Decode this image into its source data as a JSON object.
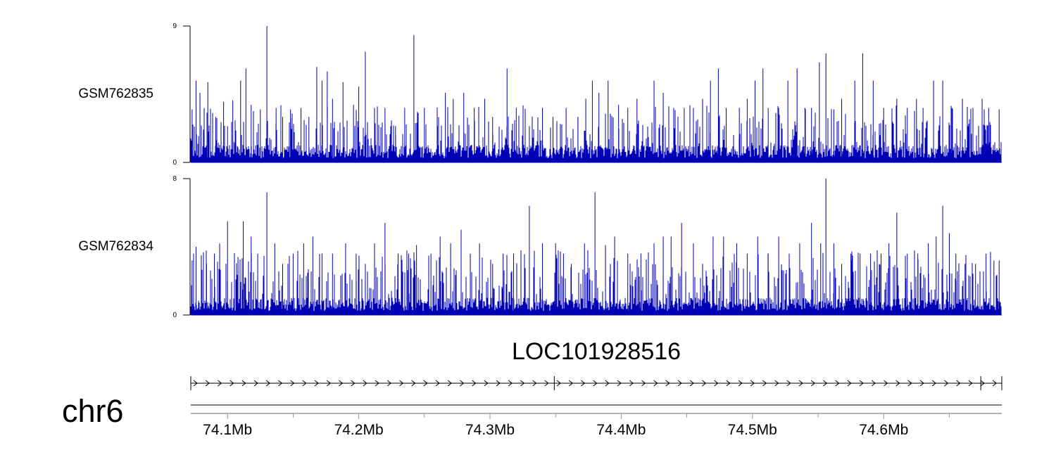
{
  "chart_data": {
    "type": "bar",
    "chromosome": "chr6",
    "x_unit": "Mb",
    "xlim": [
      74.072,
      74.69
    ],
    "x_ticks": [
      74.1,
      74.2,
      74.3,
      74.4,
      74.5,
      74.6
    ],
    "x_tick_labels": [
      "74.1Mb",
      "74.2Mb",
      "74.3Mb",
      "74.4Mb",
      "74.5Mb",
      "74.6Mb"
    ],
    "bar_color": "#0000b4",
    "tracks": [
      {
        "name": "GSM762835",
        "ylim": [
          0,
          9
        ],
        "y_tick_labels": [
          "9",
          "0"
        ],
        "baseline": 0.8,
        "density": 0.45,
        "peaks": [
          [
            74.073,
            3.5
          ],
          [
            74.076,
            5.4
          ],
          [
            74.079,
            4.6
          ],
          [
            74.085,
            5.3
          ],
          [
            74.091,
            3.0
          ],
          [
            74.097,
            4.0
          ],
          [
            74.1,
            2.4
          ],
          [
            74.104,
            4.1
          ],
          [
            74.11,
            5.4
          ],
          [
            74.114,
            6.2
          ],
          [
            74.118,
            3.8
          ],
          [
            74.125,
            3.5
          ],
          [
            74.13,
            9.0
          ],
          [
            74.137,
            3.6
          ],
          [
            74.142,
            3.0
          ],
          [
            74.148,
            3.5
          ],
          [
            74.156,
            3.6
          ],
          [
            74.162,
            3.0
          ],
          [
            74.168,
            6.3
          ],
          [
            74.172,
            5.4
          ],
          [
            74.176,
            6.0
          ],
          [
            74.18,
            4.2
          ],
          [
            74.188,
            5.3
          ],
          [
            74.196,
            3.8
          ],
          [
            74.2,
            5.0
          ],
          [
            74.205,
            7.3
          ],
          [
            74.212,
            3.6
          ],
          [
            74.22,
            3.6
          ],
          [
            74.228,
            2.4
          ],
          [
            74.235,
            3.6
          ],
          [
            74.242,
            8.4
          ],
          [
            74.25,
            3.6
          ],
          [
            74.26,
            2.4
          ],
          [
            74.266,
            4.6
          ],
          [
            74.272,
            4.2
          ],
          [
            74.28,
            4.6
          ],
          [
            74.288,
            3.6
          ],
          [
            74.296,
            4.2
          ],
          [
            74.302,
            3.0
          ],
          [
            74.313,
            6.2
          ],
          [
            74.32,
            3.6
          ],
          [
            74.33,
            2.4
          ],
          [
            74.34,
            3.6
          ],
          [
            74.348,
            3.0
          ],
          [
            74.358,
            3.6
          ],
          [
            74.367,
            3.0
          ],
          [
            74.373,
            4.2
          ],
          [
            74.378,
            5.4
          ],
          [
            74.383,
            4.6
          ],
          [
            74.39,
            5.4
          ],
          [
            74.398,
            3.8
          ],
          [
            74.405,
            3.6
          ],
          [
            74.412,
            4.2
          ],
          [
            74.425,
            5.4
          ],
          [
            74.432,
            4.6
          ],
          [
            74.44,
            3.6
          ],
          [
            74.448,
            3.6
          ],
          [
            74.455,
            3.6
          ],
          [
            74.462,
            4.2
          ],
          [
            74.468,
            5.4
          ],
          [
            74.474,
            6.2
          ],
          [
            74.48,
            3.6
          ],
          [
            74.49,
            3.6
          ],
          [
            74.496,
            4.2
          ],
          [
            74.502,
            5.4
          ],
          [
            74.508,
            6.2
          ],
          [
            74.512,
            3.6
          ],
          [
            74.52,
            3.6
          ],
          [
            74.527,
            5.4
          ],
          [
            74.534,
            6.2
          ],
          [
            74.54,
            3.6
          ],
          [
            74.545,
            3.6
          ],
          [
            74.551,
            6.6
          ],
          [
            74.556,
            7.2
          ],
          [
            74.562,
            3.5
          ],
          [
            74.568,
            4.2
          ],
          [
            74.578,
            5.4
          ],
          [
            74.584,
            7.2
          ],
          [
            74.592,
            5.4
          ],
          [
            74.6,
            3.6
          ],
          [
            74.61,
            4.2
          ],
          [
            74.618,
            3.6
          ],
          [
            74.625,
            4.2
          ],
          [
            74.63,
            3.6
          ],
          [
            74.638,
            5.4
          ],
          [
            74.645,
            5.4
          ],
          [
            74.652,
            3.6
          ],
          [
            74.66,
            4.2
          ],
          [
            74.668,
            3.6
          ],
          [
            74.675,
            4.2
          ],
          [
            74.68,
            3.6
          ],
          [
            74.688,
            3.5
          ]
        ]
      },
      {
        "name": "GSM762834",
        "ylim": [
          0,
          8
        ],
        "y_tick_labels": [
          "8",
          "0"
        ],
        "baseline": 0.7,
        "density": 0.5,
        "peaks": [
          [
            74.073,
            3.2
          ],
          [
            74.076,
            4.0
          ],
          [
            74.08,
            3.5
          ],
          [
            74.084,
            3.0
          ],
          [
            74.09,
            3.6
          ],
          [
            74.094,
            4.2
          ],
          [
            74.1,
            5.5
          ],
          [
            74.108,
            3.4
          ],
          [
            74.112,
            5.5
          ],
          [
            74.118,
            4.6
          ],
          [
            74.123,
            3.6
          ],
          [
            74.13,
            7.2
          ],
          [
            74.136,
            4.2
          ],
          [
            74.142,
            3.0
          ],
          [
            74.15,
            3.6
          ],
          [
            74.158,
            4.2
          ],
          [
            74.165,
            4.6
          ],
          [
            74.172,
            3.6
          ],
          [
            74.18,
            3.6
          ],
          [
            74.19,
            4.2
          ],
          [
            74.198,
            3.6
          ],
          [
            74.205,
            3.0
          ],
          [
            74.212,
            4.2
          ],
          [
            74.22,
            5.4
          ],
          [
            74.23,
            3.6
          ],
          [
            74.238,
            3.6
          ],
          [
            74.244,
            4.1
          ],
          [
            74.255,
            3.6
          ],
          [
            74.262,
            4.6
          ],
          [
            74.27,
            4.2
          ],
          [
            74.278,
            5.0
          ],
          [
            74.285,
            3.6
          ],
          [
            74.292,
            4.2
          ],
          [
            74.302,
            3.0
          ],
          [
            74.31,
            3.6
          ],
          [
            74.318,
            3.6
          ],
          [
            74.33,
            6.4
          ],
          [
            74.34,
            4.2
          ],
          [
            74.35,
            4.2
          ],
          [
            74.356,
            3.6
          ],
          [
            74.362,
            3.0
          ],
          [
            74.372,
            4.2
          ],
          [
            74.38,
            7.2
          ],
          [
            74.388,
            4.1
          ],
          [
            74.395,
            4.6
          ],
          [
            74.405,
            3.6
          ],
          [
            74.415,
            3.6
          ],
          [
            74.425,
            4.2
          ],
          [
            74.432,
            4.6
          ],
          [
            74.438,
            4.6
          ],
          [
            74.446,
            5.4
          ],
          [
            74.455,
            4.2
          ],
          [
            74.462,
            3.0
          ],
          [
            74.47,
            4.6
          ],
          [
            74.478,
            4.6
          ],
          [
            74.488,
            4.2
          ],
          [
            74.496,
            3.6
          ],
          [
            74.504,
            4.6
          ],
          [
            74.512,
            3.6
          ],
          [
            74.52,
            4.6
          ],
          [
            74.528,
            3.6
          ],
          [
            74.536,
            4.2
          ],
          [
            74.545,
            5.4
          ],
          [
            74.552,
            4.2
          ],
          [
            74.556,
            8.0
          ],
          [
            74.562,
            4.2
          ],
          [
            74.568,
            3.0
          ],
          [
            74.575,
            3.6
          ],
          [
            74.582,
            3.6
          ],
          [
            74.59,
            3.6
          ],
          [
            74.598,
            3.6
          ],
          [
            74.604,
            4.2
          ],
          [
            74.61,
            6.0
          ],
          [
            74.618,
            3.6
          ],
          [
            74.626,
            3.6
          ],
          [
            74.634,
            4.2
          ],
          [
            74.64,
            4.6
          ],
          [
            74.645,
            6.4
          ],
          [
            74.65,
            4.8
          ],
          [
            74.655,
            3.6
          ],
          [
            74.662,
            3.0
          ],
          [
            74.67,
            3.0
          ],
          [
            74.678,
            3.6
          ],
          [
            74.684,
            3.2
          ],
          [
            74.688,
            3.2
          ]
        ]
      }
    ],
    "gene": {
      "name": "LOC101928516",
      "strand": "+",
      "start": 74.072,
      "end": 74.69,
      "internal_breaks": [
        74.349,
        74.674
      ]
    }
  }
}
